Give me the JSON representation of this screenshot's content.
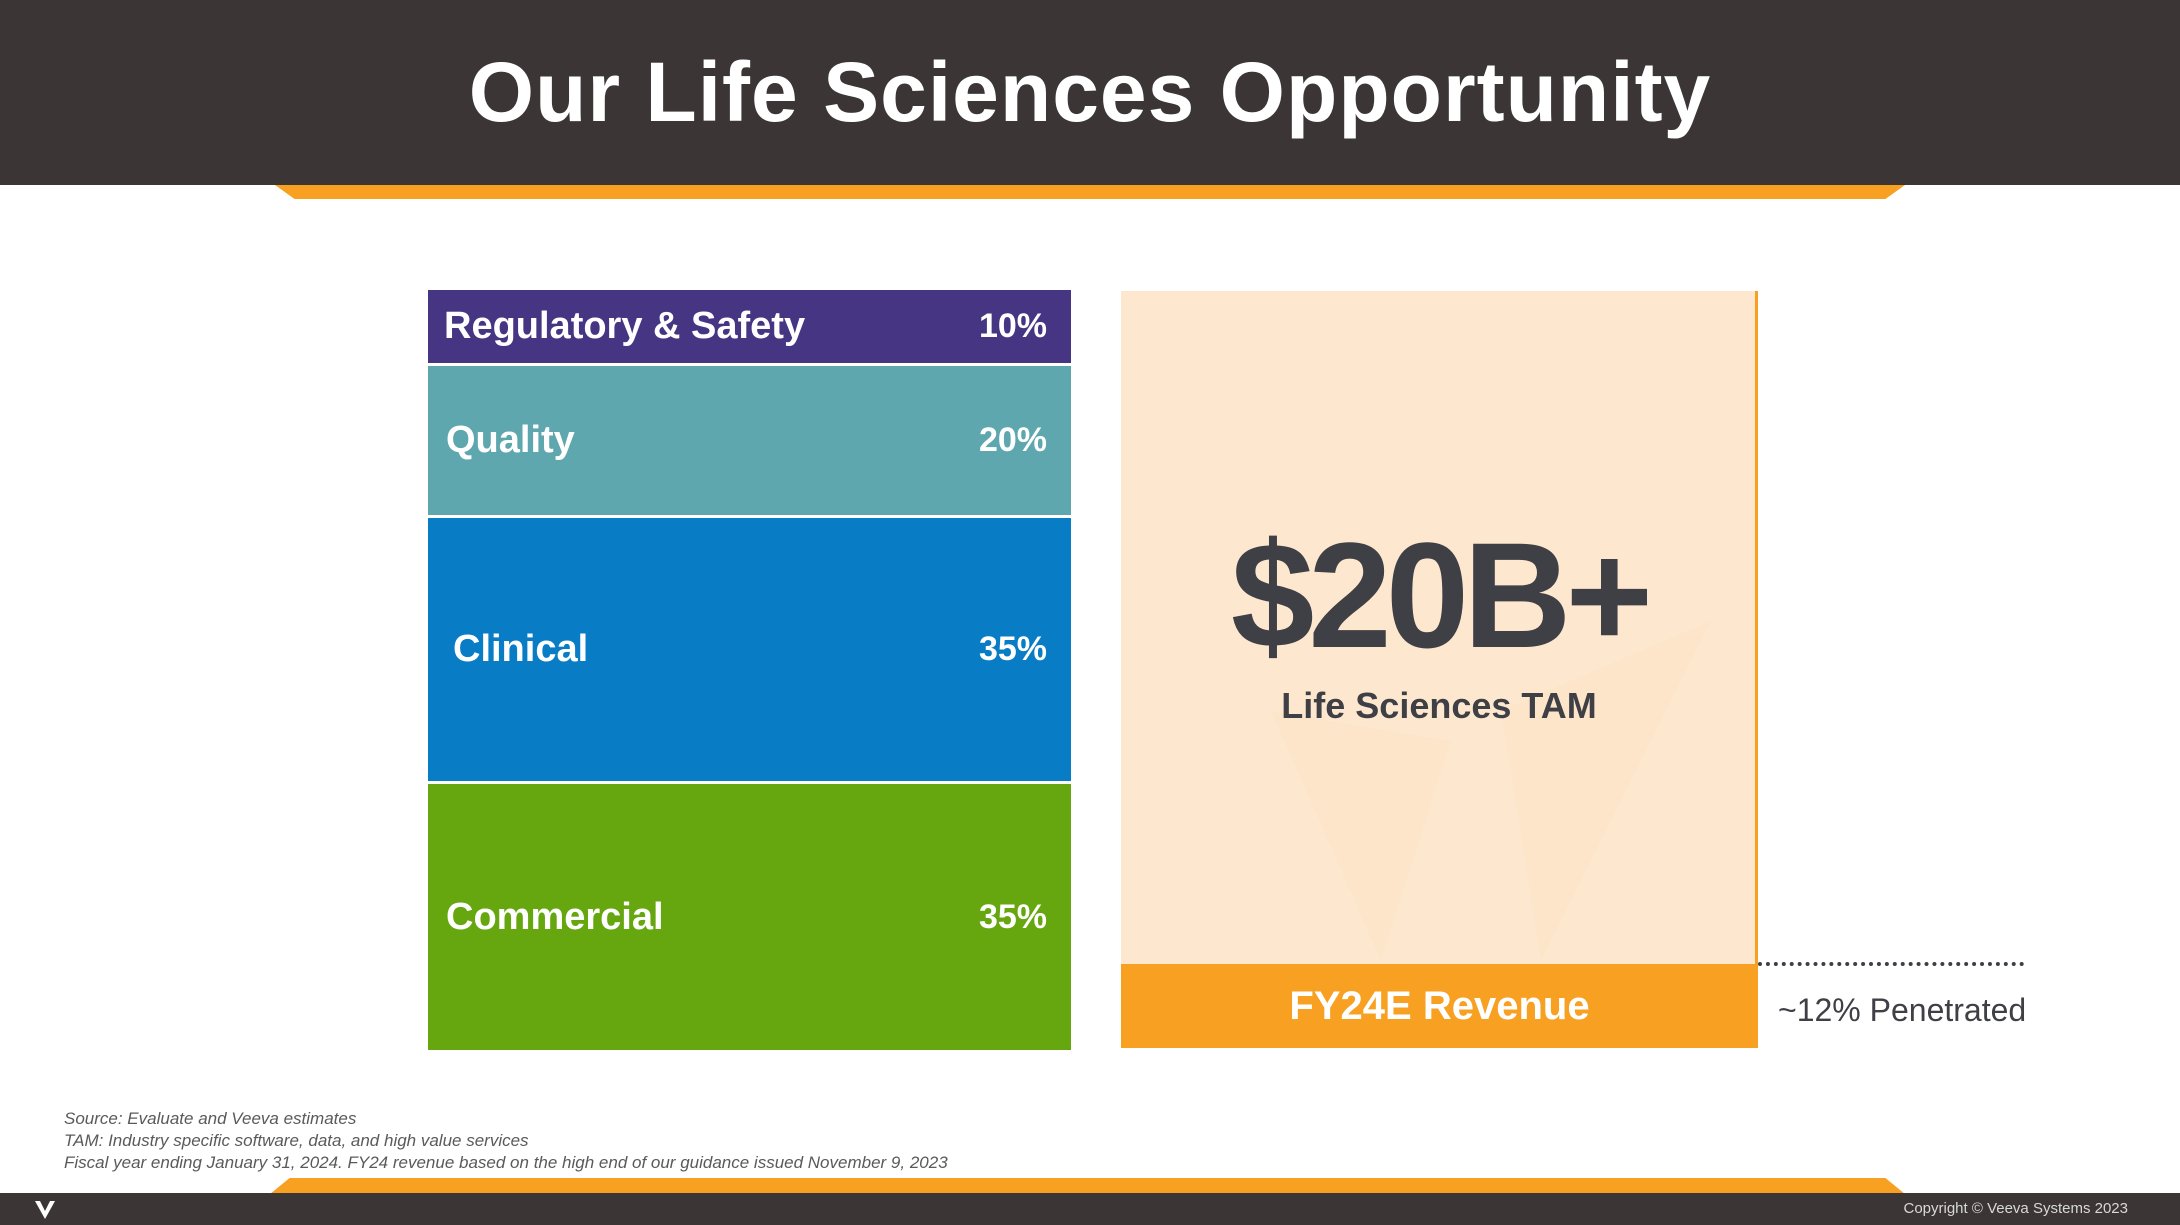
{
  "header": {
    "title": "Our Life Sciences Opportunity"
  },
  "chart_data": {
    "type": "bar",
    "categories": [
      "Regulatory & Safety",
      "Quality",
      "Clinical",
      "Commercial"
    ],
    "values": [
      10,
      20,
      35,
      35
    ],
    "value_labels": [
      "10%",
      "20%",
      "35%",
      "35%"
    ],
    "colors": [
      "#463583",
      "#5fa7ae",
      "#087cc4",
      "#66a70f"
    ],
    "title": "",
    "xlabel": "",
    "ylabel": ""
  },
  "tam": {
    "value": "$20B+",
    "label": "Life Sciences TAM",
    "box_color": "#fde8cf",
    "revenue_label": "FY24E Revenue",
    "revenue_share": 0.12,
    "revenue_color": "#f7a021",
    "penetration_label": "~12% Penetrated"
  },
  "footnotes": {
    "source": "Source: Evaluate and Veeva estimates",
    "tam_def": "TAM: Industry specific software, data, and high value services",
    "fiscal": "Fiscal year ending January 31, 2024. FY24 revenue based on the high end of our guidance issued November 9, 2023"
  },
  "footer": {
    "copyright": "Copyright © Veeva Systems 2023",
    "logo_icon": "veeva-logo-icon"
  }
}
